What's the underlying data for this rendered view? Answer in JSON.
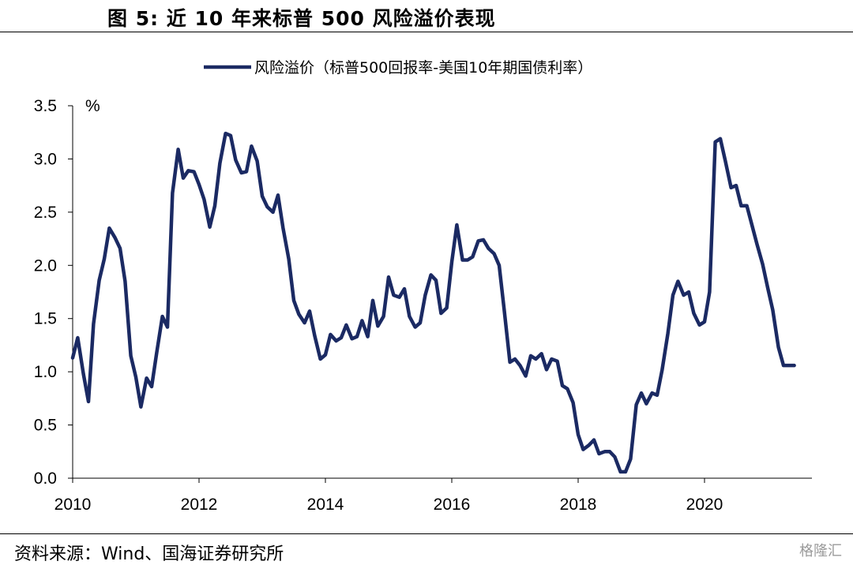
{
  "header": {
    "title": "图 5:  近 10 年来标普 500 风险溢价表现"
  },
  "footer": {
    "source": "资料来源：Wind、国海证券研究所",
    "watermark": "格隆汇"
  },
  "chart_data": {
    "type": "line",
    "title": "",
    "ylabel": "%",
    "xlabel": "",
    "ylim": [
      0,
      3.5
    ],
    "xlim": [
      2010,
      2021.5
    ],
    "yticks": [
      "0.0",
      "0.5",
      "1.0",
      "1.5",
      "2.0",
      "2.5",
      "3.0",
      "3.5"
    ],
    "xticks": [
      "2010",
      "2012",
      "2014",
      "2016",
      "2018",
      "2020"
    ],
    "legend_position": "top-center",
    "grid": false,
    "color": "#1b2a63",
    "series": [
      {
        "name": "风险溢价（标普500回报率-美国10年期国债利率）",
        "x": [
          2010.0,
          2010.08,
          2010.17,
          2010.25,
          2010.33,
          2010.42,
          2010.5,
          2010.58,
          2010.67,
          2010.75,
          2010.83,
          2010.92,
          2011.0,
          2011.08,
          2011.17,
          2011.25,
          2011.33,
          2011.42,
          2011.5,
          2011.58,
          2011.67,
          2011.75,
          2011.83,
          2011.92,
          2012.0,
          2012.08,
          2012.17,
          2012.25,
          2012.33,
          2012.42,
          2012.5,
          2012.58,
          2012.67,
          2012.75,
          2012.83,
          2012.92,
          2013.0,
          2013.08,
          2013.17,
          2013.25,
          2013.33,
          2013.42,
          2013.5,
          2013.58,
          2013.67,
          2013.75,
          2013.83,
          2013.92,
          2014.0,
          2014.08,
          2014.17,
          2014.25,
          2014.33,
          2014.42,
          2014.5,
          2014.58,
          2014.67,
          2014.75,
          2014.83,
          2014.92,
          2015.0,
          2015.08,
          2015.17,
          2015.25,
          2015.33,
          2015.42,
          2015.5,
          2015.58,
          2015.67,
          2015.75,
          2015.83,
          2015.92,
          2016.0,
          2016.08,
          2016.17,
          2016.25,
          2016.33,
          2016.42,
          2016.5,
          2016.58,
          2016.67,
          2016.75,
          2016.83,
          2016.92,
          2017.0,
          2017.08,
          2017.17,
          2017.25,
          2017.33,
          2017.42,
          2017.5,
          2017.58,
          2017.67,
          2017.75,
          2017.83,
          2017.92,
          2018.0,
          2018.08,
          2018.17,
          2018.25,
          2018.33,
          2018.42,
          2018.5,
          2018.58,
          2018.67,
          2018.75,
          2018.83,
          2018.92,
          2019.0,
          2019.08,
          2019.17,
          2019.25,
          2019.33,
          2019.42,
          2019.5,
          2019.58,
          2019.67,
          2019.75,
          2019.83,
          2019.92,
          2020.0,
          2020.08,
          2020.17,
          2020.25,
          2020.33,
          2020.42,
          2020.5,
          2020.58,
          2020.67,
          2020.75,
          2020.83,
          2020.92,
          2021.0,
          2021.08,
          2021.17,
          2021.25,
          2021.33,
          2021.42
        ],
        "y": [
          1.13,
          1.32,
          0.98,
          0.72,
          1.45,
          1.86,
          2.06,
          2.35,
          2.26,
          2.16,
          1.85,
          1.15,
          0.95,
          0.67,
          0.94,
          0.86,
          1.18,
          1.52,
          1.42,
          2.68,
          3.09,
          2.82,
          2.89,
          2.88,
          2.76,
          2.62,
          2.36,
          2.56,
          2.96,
          3.24,
          3.22,
          2.99,
          2.87,
          2.88,
          3.12,
          2.98,
          2.65,
          2.55,
          2.5,
          2.66,
          2.35,
          2.06,
          1.67,
          1.54,
          1.46,
          1.57,
          1.34,
          1.12,
          1.16,
          1.35,
          1.29,
          1.32,
          1.44,
          1.31,
          1.33,
          1.48,
          1.33,
          1.67,
          1.43,
          1.52,
          1.89,
          1.72,
          1.7,
          1.78,
          1.52,
          1.42,
          1.46,
          1.72,
          1.91,
          1.86,
          1.55,
          1.6,
          2.03,
          2.38,
          2.05,
          2.05,
          2.08,
          2.23,
          2.24,
          2.16,
          2.11,
          2.0,
          1.58,
          1.09,
          1.12,
          1.06,
          0.96,
          1.15,
          1.12,
          1.17,
          1.02,
          1.12,
          1.1,
          0.87,
          0.84,
          0.71,
          0.41,
          0.27,
          0.31,
          0.36,
          0.23,
          0.25,
          0.25,
          0.2,
          0.06,
          0.06,
          0.18,
          0.69,
          0.8,
          0.7,
          0.8,
          0.78,
          1.02,
          1.36,
          1.72,
          1.85,
          1.72,
          1.75,
          1.55,
          1.44,
          1.47,
          1.75,
          3.16,
          3.19,
          2.98,
          2.73,
          2.75,
          2.56,
          2.56,
          2.38,
          2.2,
          2.01,
          1.79,
          1.58,
          1.23,
          1.06,
          1.06,
          1.06
        ]
      }
    ]
  }
}
